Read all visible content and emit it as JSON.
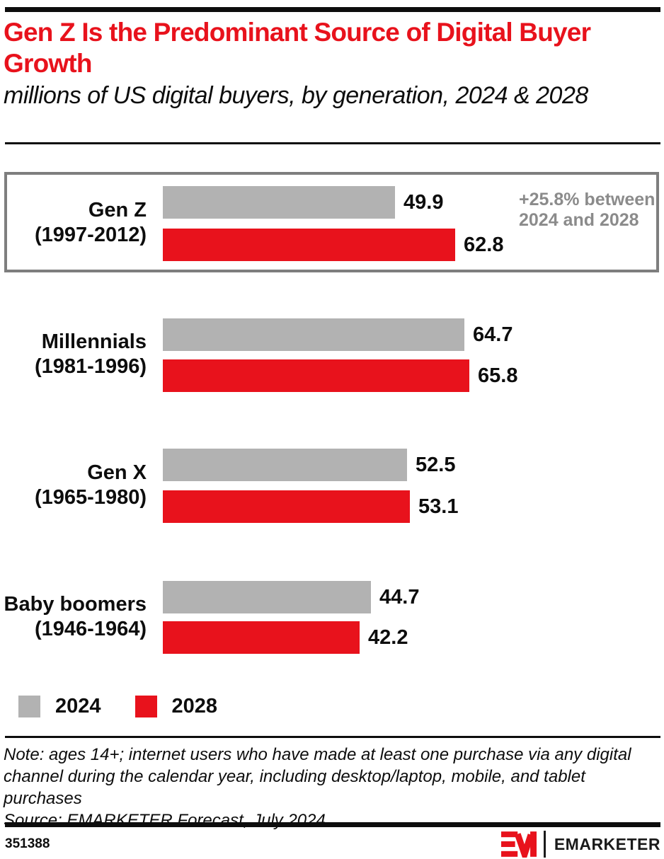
{
  "header": {
    "title": "Gen Z Is the Predominant Source of Digital Buyer Growth",
    "subtitle": "millions of US digital buyers, by generation, 2024 & 2028"
  },
  "chart_data": {
    "type": "bar",
    "orientation": "horizontal",
    "title": "Gen Z Is the Predominant Source of Digital Buyer Growth",
    "subtitle": "millions of US digital buyers, by generation, 2024 & 2028",
    "unit": "millions of US digital buyers",
    "categories": [
      "Gen Z (1997-2012)",
      "Millennials (1981-1996)",
      "Gen X (1965-1980)",
      "Baby boomers (1946-1964)"
    ],
    "category_labels": [
      {
        "name": "Gen Z",
        "years": "(1997-2012)"
      },
      {
        "name": "Millennials",
        "years": "(1981-1996)"
      },
      {
        "name": "Gen X",
        "years": "(1965-1980)"
      },
      {
        "name": "Baby boomers",
        "years": "(1946-1964)"
      }
    ],
    "series": [
      {
        "name": "2024",
        "color": "#b2b2b2",
        "values": [
          49.9,
          64.7,
          52.5,
          44.7
        ]
      },
      {
        "name": "2028",
        "color": "#e8121c",
        "values": [
          62.8,
          65.8,
          53.1,
          42.2
        ]
      }
    ],
    "xlim": [
      0,
      70
    ],
    "grid": false,
    "legend_position": "bottom-left",
    "annotation": "+25.8% between 2024 and 2028",
    "annotation_target": "Gen Z (1997-2012)",
    "highlight_box_category": "Gen Z (1997-2012)"
  },
  "colors": {
    "brand_red": "#e8121c",
    "bar_gray": "#b2b2b2",
    "annotation_gray": "#8b8b8b",
    "highlight_border_gray": "#7e7e7e",
    "bar_black": "#0d0d0d"
  },
  "note": "Note: ages 14+; internet users who have made at least one purchase via any digital channel during the calendar year, including desktop/laptop, mobile, and tablet purchases",
  "source": "Source: EMARKETER Forecast, July 2024",
  "footer": {
    "chart_id": "351388",
    "logo_wordmark": "EMARKETER"
  }
}
